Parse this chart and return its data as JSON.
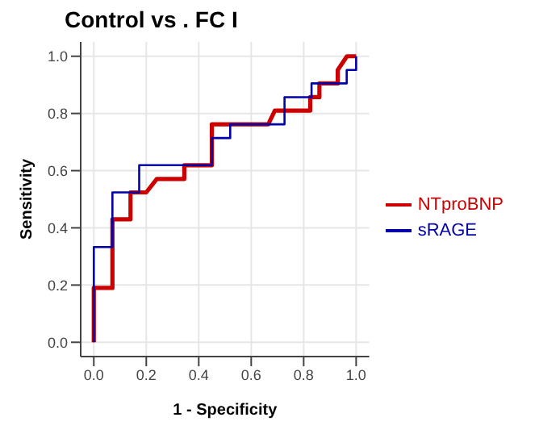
{
  "chart_data": {
    "type": "line",
    "title": "Control vs . FC I",
    "xlabel": "1 - Specificity",
    "ylabel": "Sensitivity",
    "xlim": [
      -0.05,
      1.05
    ],
    "ylim": [
      -0.05,
      1.05
    ],
    "xticks": [
      {
        "value": 0,
        "label": "0.0"
      },
      {
        "value": 0.2,
        "label": "0.2"
      },
      {
        "value": 0.4,
        "label": "0.4"
      },
      {
        "value": 0.6,
        "label": "0.6"
      },
      {
        "value": 0.8,
        "label": "0.8"
      },
      {
        "value": 1,
        "label": "1.0"
      }
    ],
    "yticks": [
      {
        "value": 0,
        "label": "0.0"
      },
      {
        "value": 0.2,
        "label": "0.2"
      },
      {
        "value": 0.4,
        "label": "0.4"
      },
      {
        "value": 0.6,
        "label": "0.6"
      },
      {
        "value": 0.8,
        "label": "0.8"
      },
      {
        "value": 1,
        "label": "1.0"
      }
    ],
    "grid": true,
    "legend": "right",
    "marker": "none",
    "line_style": "solid",
    "series": [
      {
        "name": "NTproBNP",
        "color": "#cc0000",
        "x": [
          0,
          0,
          0.071,
          0.071,
          0.14,
          0.14,
          0.2,
          0.24,
          0.345,
          0.345,
          0.45,
          0.45,
          0.665,
          0.69,
          0.825,
          0.825,
          0.86,
          0.86,
          0.93,
          0.93,
          0.965,
          1
        ],
        "values": [
          0,
          0.19,
          0.19,
          0.43,
          0.43,
          0.524,
          0.524,
          0.571,
          0.571,
          0.619,
          0.619,
          0.762,
          0.762,
          0.81,
          0.81,
          0.857,
          0.857,
          0.905,
          0.905,
          0.952,
          1,
          1
        ]
      },
      {
        "name": "sRAGE",
        "color": "#0000aa",
        "x": [
          0,
          0,
          0.071,
          0.071,
          0.173,
          0.173,
          0.45,
          0.45,
          0.52,
          0.52,
          0.727,
          0.727,
          0.83,
          0.83,
          0.964,
          0.964,
          1,
          1
        ],
        "values": [
          0,
          0.333,
          0.333,
          0.524,
          0.524,
          0.619,
          0.619,
          0.714,
          0.714,
          0.762,
          0.762,
          0.857,
          0.857,
          0.905,
          0.905,
          0.952,
          0.952,
          1
        ]
      }
    ]
  }
}
